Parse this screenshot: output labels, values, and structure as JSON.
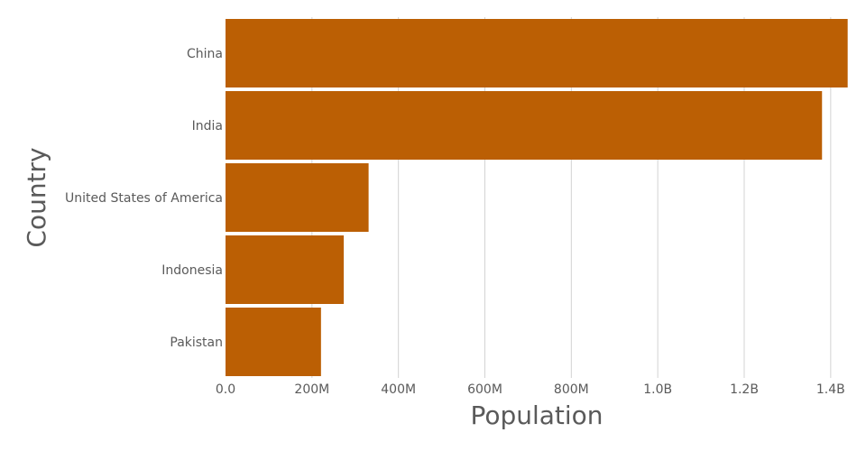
{
  "chart_data": {
    "type": "bar",
    "orientation": "horizontal",
    "title": "",
    "xlabel": "Population",
    "ylabel": "Country",
    "categories": [
      "China",
      "India",
      "United States of America",
      "Indonesia",
      "Pakistan"
    ],
    "values": [
      1439323776,
      1380004385,
      331002651,
      273523615,
      220892340
    ],
    "xlim": [
      0,
      1440000000
    ],
    "x_ticks": [
      0,
      200000000,
      400000000,
      600000000,
      800000000,
      1000000000,
      1200000000,
      1400000000
    ],
    "x_tick_labels": [
      "0.0",
      "200M",
      "400M",
      "600M",
      "800M",
      "1.0B",
      "1.2B",
      "1.4B"
    ],
    "grid": true,
    "legend": "none",
    "bar_color": "#bb5f04"
  }
}
